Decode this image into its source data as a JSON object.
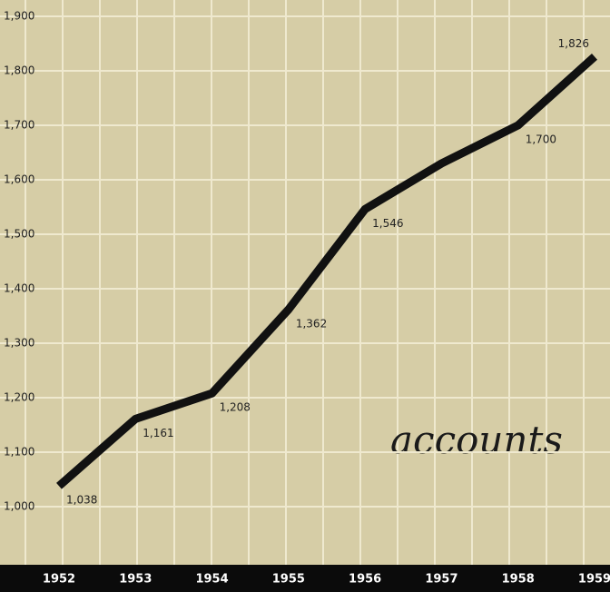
{
  "chart_data": {
    "type": "line",
    "annotation": "accounts",
    "categories": [
      "1952",
      "1953",
      "1954",
      "1955",
      "1956",
      "1957",
      "1958",
      "1959"
    ],
    "values": [
      1038,
      1161,
      1208,
      1362,
      1546,
      1630,
      1700,
      1826
    ],
    "value_labels": [
      "1,038",
      "1,161",
      "1,208",
      "1,362",
      "1,546",
      null,
      "1,700",
      "1,826"
    ],
    "color": "#111111",
    "ylim": [
      1000,
      1900
    ],
    "yticks": [
      {
        "value": 1000,
        "label": "1,000"
      },
      {
        "value": 1100,
        "label": "1,100"
      },
      {
        "value": 1200,
        "label": "1,200"
      },
      {
        "value": 1300,
        "label": "1,300"
      },
      {
        "value": 1400,
        "label": "1,400"
      },
      {
        "value": 1500,
        "label": "1,500"
      },
      {
        "value": 1600,
        "label": "1,600"
      },
      {
        "value": 1700,
        "label": "1,700"
      },
      {
        "value": 1800,
        "label": "1,800"
      },
      {
        "value": 1900,
        "label": "1,900"
      }
    ],
    "grid": true
  }
}
